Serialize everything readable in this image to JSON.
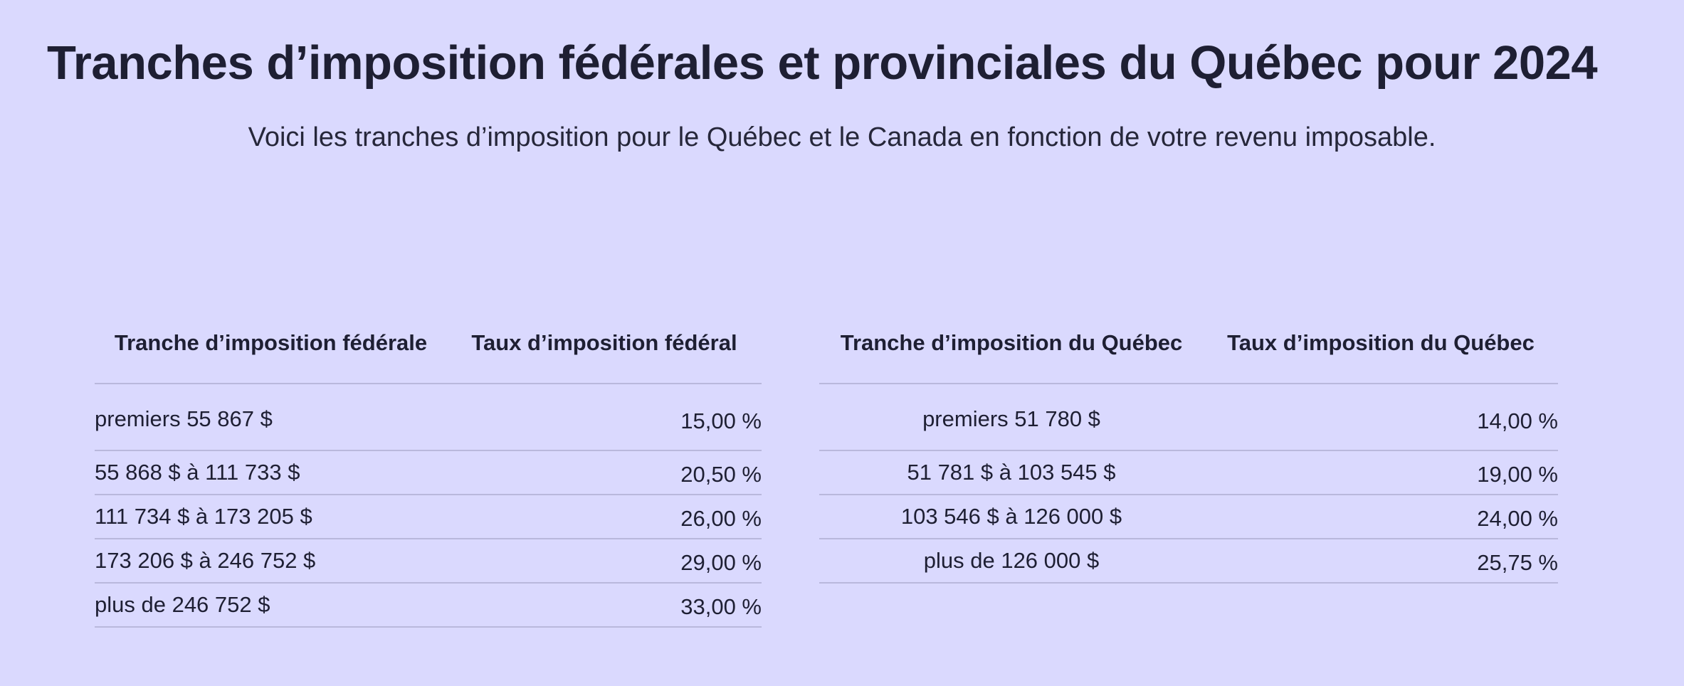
{
  "page": {
    "title": "Tranches d’imposition fédérales et provinciales du Québec pour 2024",
    "subtitle": "Voici les tranches d’imposition pour le Québec et le Canada en fonction de votre revenu imposable."
  },
  "federal_table": {
    "headers": {
      "bracket": "Tranche d’imposition fédérale",
      "rate": "Taux d’imposition fédéral"
    },
    "rows": [
      {
        "bracket": "premiers 55 867 $",
        "rate": "15,00 %"
      },
      {
        "bracket": "55 868 $ à 111 733 $",
        "rate": "20,50 %"
      },
      {
        "bracket": "111 734 $ à 173 205 $",
        "rate": "26,00 %"
      },
      {
        "bracket": "173 206 $ à 246 752 $",
        "rate": "29,00 %"
      },
      {
        "bracket": "plus de 246 752 $",
        "rate": "33,00 %"
      }
    ]
  },
  "quebec_table": {
    "headers": {
      "bracket": "Tranche d’imposition du Québec",
      "rate": "Taux d’imposition du Québec"
    },
    "rows": [
      {
        "bracket": "premiers 51 780 $",
        "rate": "14,00 %"
      },
      {
        "bracket": "51 781 $ à 103 545 $",
        "rate": "19,00 %"
      },
      {
        "bracket": "103 546 $ à 126 000 $",
        "rate": "24,00 %"
      },
      {
        "bracket": "plus de 126 000 $",
        "rate": "25,75 %"
      }
    ]
  }
}
